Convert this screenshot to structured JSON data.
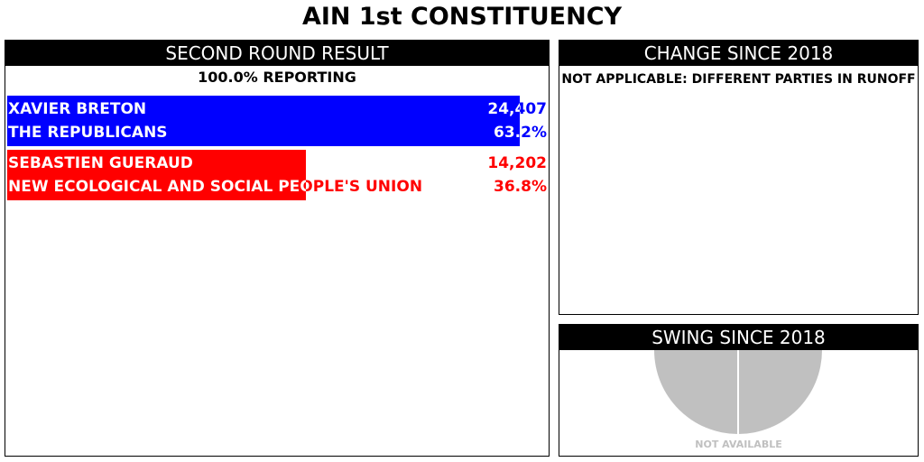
{
  "title": "AIN 1st CONSTITUENCY",
  "results_panel": {
    "header": "SECOND ROUND RESULT",
    "reporting": "100.0% REPORTING"
  },
  "change_panel": {
    "header": "CHANGE SINCE 2018",
    "note": "NOT APPLICABLE: DIFFERENT PARTIES IN RUNOFF"
  },
  "swing_panel": {
    "header": "SWING SINCE 2018",
    "status": "NOT AVAILABLE",
    "pie_color": "#c0c0c0"
  },
  "chart_data": {
    "type": "bar",
    "orientation": "horizontal",
    "series": [
      {
        "name": "XAVIER BRETON",
        "party": "THE REPUBLICANS",
        "votes": "24,407",
        "percent_label": "63.2%",
        "percent": 63.2,
        "color": "#0000ff"
      },
      {
        "name": "SEBASTIEN GUERAUD",
        "party": "NEW ECOLOGICAL AND SOCIAL PEOPLE'S UNION",
        "votes": "14,202",
        "percent_label": "36.8%",
        "percent": 36.8,
        "color": "#ff0000"
      }
    ],
    "xlim": [
      0,
      66.5
    ]
  }
}
